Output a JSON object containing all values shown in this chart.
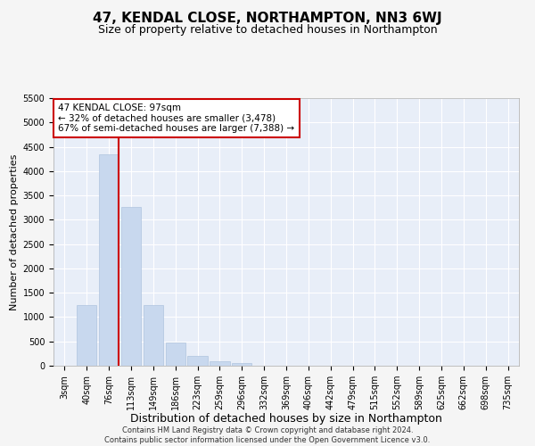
{
  "title": "47, KENDAL CLOSE, NORTHAMPTON, NN3 6WJ",
  "subtitle": "Size of property relative to detached houses in Northampton",
  "xlabel": "Distribution of detached houses by size in Northampton",
  "ylabel": "Number of detached properties",
  "footer_line1": "Contains HM Land Registry data © Crown copyright and database right 2024.",
  "footer_line2": "Contains public sector information licensed under the Open Government Licence v3.0.",
  "annotation_line1": "47 KENDAL CLOSE: 97sqm",
  "annotation_line2": "← 32% of detached houses are smaller (3,478)",
  "annotation_line3": "67% of semi-detached houses are larger (7,388) →",
  "bar_color": "#c8d8ee",
  "bar_edge_color": "#b0c4de",
  "vline_color": "#cc0000",
  "vline_x_index": 2,
  "categories": [
    "3sqm",
    "40sqm",
    "76sqm",
    "113sqm",
    "149sqm",
    "186sqm",
    "223sqm",
    "259sqm",
    "296sqm",
    "332sqm",
    "369sqm",
    "406sqm",
    "442sqm",
    "479sqm",
    "515sqm",
    "552sqm",
    "589sqm",
    "625sqm",
    "662sqm",
    "698sqm",
    "735sqm"
  ],
  "values": [
    0,
    1250,
    4350,
    3270,
    1250,
    480,
    200,
    90,
    60,
    0,
    0,
    0,
    0,
    0,
    0,
    0,
    0,
    0,
    0,
    0,
    0
  ],
  "ylim": [
    0,
    5500
  ],
  "yticks": [
    0,
    500,
    1000,
    1500,
    2000,
    2500,
    3000,
    3500,
    4000,
    4500,
    5000,
    5500
  ],
  "plot_bg_color": "#e8eef8",
  "fig_bg_color": "#f5f5f5",
  "grid_color": "#ffffff",
  "title_fontsize": 11,
  "subtitle_fontsize": 9,
  "xlabel_fontsize": 9,
  "ylabel_fontsize": 8,
  "tick_fontsize": 7,
  "footer_fontsize": 6,
  "annotation_fontsize": 7.5,
  "annotation_box_color": "#ffffff",
  "annotation_box_edgecolor": "#cc0000"
}
